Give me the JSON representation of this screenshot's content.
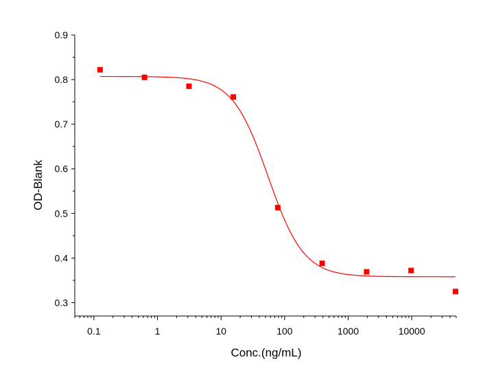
{
  "chart_data": {
    "type": "scatter",
    "title": "",
    "xlabel": "Conc.(ng/mL)",
    "ylabel": "OD-Blank",
    "xscale": "log",
    "xlim": [
      0.05,
      50000
    ],
    "ylim": [
      0.27,
      0.9
    ],
    "grid": false,
    "x_tick_labels": [
      "0.1",
      "1",
      "10",
      "100",
      "1000",
      "10000"
    ],
    "x_ticks": [
      0.1,
      1,
      10,
      100,
      1000,
      10000
    ],
    "y_tick_labels": [
      "0.3",
      "0.4",
      "0.5",
      "0.6",
      "0.7",
      "0.8",
      "0.9"
    ],
    "y_ticks": [
      0.3,
      0.4,
      0.5,
      0.6,
      0.7,
      0.8,
      0.9
    ],
    "series": [
      {
        "kind": "points",
        "color": "#ff0000",
        "x": [
          0.125,
          0.625,
          3.125,
          15.6,
          78,
          390,
          1950,
          9750,
          48800
        ],
        "y": [
          0.822,
          0.805,
          0.785,
          0.761,
          0.513,
          0.388,
          0.369,
          0.372,
          0.325
        ]
      },
      {
        "kind": "fit-curve",
        "color": "#ff0000",
        "model": "4PL",
        "params": {
          "top": 0.807,
          "bottom": 0.358,
          "ec50": 55,
          "hill": 1.55
        },
        "x_range": [
          0.125,
          48800
        ]
      }
    ]
  }
}
